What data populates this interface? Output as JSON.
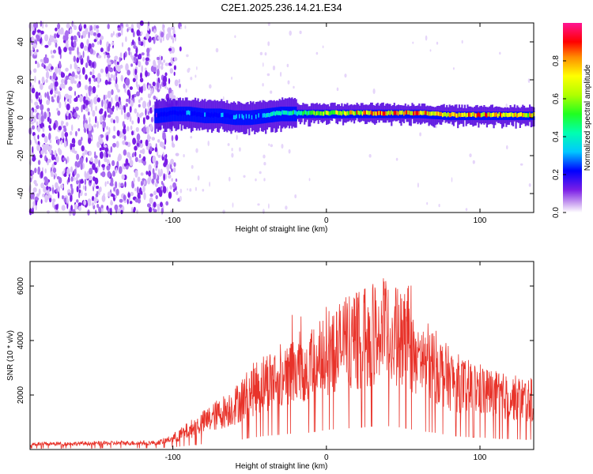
{
  "title": "C2E1.2025.236.14.21.E34",
  "chart_data": [
    {
      "type": "heatmap",
      "name": "spectrogram",
      "xlabel": "Height of straight line (km)",
      "ylabel": "Frequency (Hz)",
      "xlim": [
        -193,
        135
      ],
      "ylim": [
        -50,
        50
      ],
      "xticks": [
        -100,
        0,
        100
      ],
      "yticks": [
        -40,
        -20,
        0,
        20,
        40
      ],
      "noise_region_x": [
        -193,
        -95
      ],
      "signal": {
        "x": [
          -110,
          -100,
          -90,
          -80,
          -70,
          -60,
          -50,
          -40,
          -30,
          -20,
          -10,
          0,
          20,
          40,
          60,
          80,
          100,
          120,
          135
        ],
        "center_hz": [
          1,
          2,
          2,
          1,
          1,
          0,
          0,
          1,
          2,
          2,
          2,
          2,
          2,
          2,
          2,
          1,
          1,
          1,
          1
        ],
        "amplitude": [
          0.25,
          0.3,
          0.3,
          0.3,
          0.3,
          0.35,
          0.35,
          0.4,
          0.45,
          0.5,
          0.6,
          0.7,
          0.8,
          0.85,
          0.85,
          0.85,
          0.85,
          0.8,
          0.8
        ]
      },
      "colorbar": {
        "label": "Normalized spectral amplitude",
        "range": [
          0,
          1
        ],
        "ticks": [
          "0.0",
          "0.2",
          "0.4",
          "0.6",
          "0.8"
        ],
        "tick_values": [
          0,
          0.2,
          0.4,
          0.6,
          0.8
        ]
      }
    },
    {
      "type": "line",
      "name": "snr",
      "xlabel": "Height of straight line (km)",
      "ylabel": "SNR (10 * v/v)",
      "xlim": [
        -193,
        135
      ],
      "ylim": [
        0,
        6900
      ],
      "xticks": [
        -100,
        0,
        100
      ],
      "yticks": [
        2000,
        4000,
        6000
      ],
      "color": "#e8332a",
      "envelope": {
        "x": [
          -193,
          -110,
          -100,
          -90,
          -80,
          -70,
          -60,
          -50,
          -40,
          -30,
          -20,
          -10,
          0,
          10,
          20,
          30,
          40,
          50,
          60,
          70,
          80,
          90,
          100,
          110,
          120,
          135
        ],
        "y": [
          200,
          250,
          400,
          700,
          1000,
          1300,
          1600,
          2100,
          2500,
          2700,
          3000,
          3100,
          3600,
          3800,
          4000,
          4200,
          4300,
          4000,
          3400,
          3100,
          2600,
          2300,
          2200,
          2000,
          1900,
          1800
        ]
      }
    }
  ]
}
